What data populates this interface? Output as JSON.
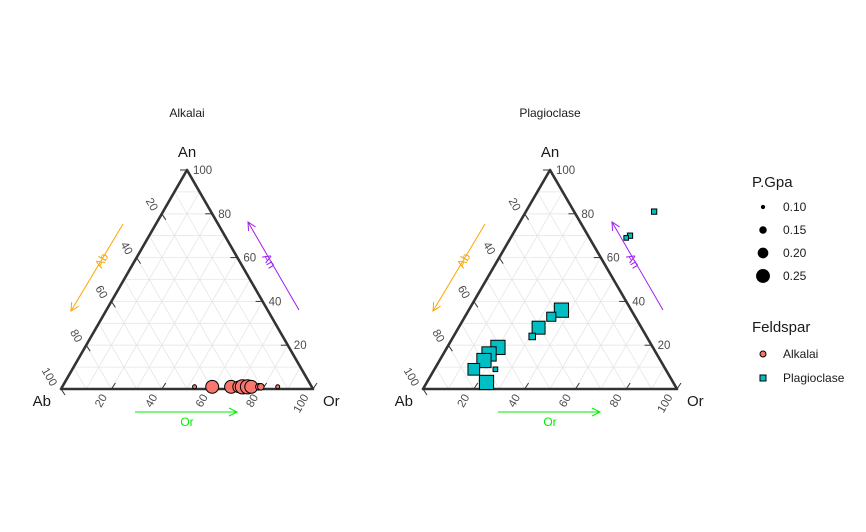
{
  "chart_data": {
    "type": "scatter",
    "chart_kind": "ternary",
    "vertex_labels": {
      "top": "An",
      "left": "Ab",
      "right": "Or"
    },
    "axis_arrow_labels": {
      "Ab": "Ab",
      "An": "An",
      "Or": "Or"
    },
    "ticks": [
      "20",
      "40",
      "60",
      "80",
      "100"
    ],
    "arrow_colors": {
      "Ab": "#ffa500",
      "An": "#a020f0",
      "Or": "#00ee00"
    },
    "grid": true,
    "legend_position": "right",
    "panels": [
      {
        "title": "Alkalai",
        "color": "#f8766d",
        "shape": "circle",
        "points": [
          {
            "An": 1.0,
            "Or": 52.5,
            "P": 0.08
          },
          {
            "An": 1.5,
            "Or": 58.5,
            "P": 0.09
          },
          {
            "An": 1.0,
            "Or": 59.5,
            "P": 0.22
          },
          {
            "An": 1.0,
            "Or": 67.0,
            "P": 0.22
          },
          {
            "An": 1.0,
            "Or": 70.0,
            "P": 0.2
          },
          {
            "An": 1.0,
            "Or": 71.5,
            "P": 0.24
          },
          {
            "An": 1.0,
            "Or": 73.5,
            "P": 0.24
          },
          {
            "An": 1.0,
            "Or": 75.0,
            "P": 0.22
          },
          {
            "An": 1.0,
            "Or": 78.0,
            "P": 0.12
          },
          {
            "An": 1.0,
            "Or": 78.8,
            "P": 0.12
          },
          {
            "An": 1.0,
            "Or": 85.5,
            "P": 0.08
          }
        ]
      },
      {
        "title": "Plagioclase",
        "color": "#00bfc4",
        "shape": "square",
        "points": [
          {
            "An": 81,
            "Or": 50.5,
            "P": 0.1
          },
          {
            "An": 70,
            "Or": 46.5,
            "P": 0.1
          },
          {
            "An": 69,
            "Or": 45.5,
            "P": 0.09
          },
          {
            "An": 36,
            "Or": 36.5,
            "P": 0.24
          },
          {
            "An": 33,
            "Or": 34.0,
            "P": 0.16
          },
          {
            "An": 28,
            "Or": 31.5,
            "P": 0.22
          },
          {
            "An": 24,
            "Or": 31.0,
            "P": 0.12
          },
          {
            "An": 19,
            "Or": 20.0,
            "P": 0.24
          },
          {
            "An": 16,
            "Or": 18.0,
            "P": 0.24
          },
          {
            "An": 13,
            "Or": 17.5,
            "P": 0.24
          },
          {
            "An": 9,
            "Or": 15.5,
            "P": 0.2
          },
          {
            "An": 9,
            "Or": 24.0,
            "P": 0.09
          },
          {
            "An": 3,
            "Or": 23.5,
            "P": 0.24
          }
        ]
      }
    ],
    "legend": {
      "size_title": "P.Gpa",
      "size_entries": [
        {
          "label": "0.10",
          "value": 0.1
        },
        {
          "label": "0.15",
          "value": 0.15
        },
        {
          "label": "0.20",
          "value": 0.2
        },
        {
          "label": "0.25",
          "value": 0.25
        }
      ],
      "color_title": "Feldspar",
      "color_entries": [
        {
          "label": "Alkalai",
          "color": "#f8766d",
          "shape": "circle"
        },
        {
          "label": "Plagioclase",
          "color": "#00bfc4",
          "shape": "square"
        }
      ]
    }
  }
}
